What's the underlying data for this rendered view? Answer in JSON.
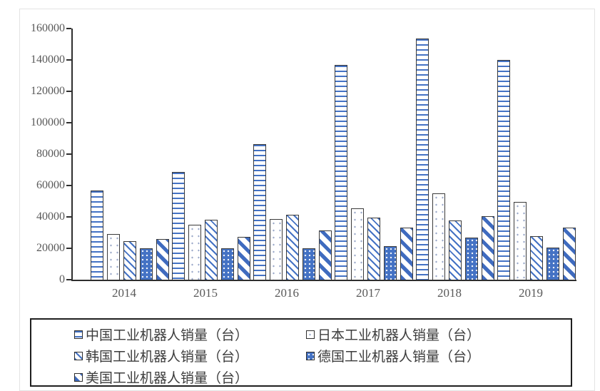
{
  "chart_data": {
    "type": "bar",
    "title": "",
    "xlabel": "",
    "ylabel": "",
    "categories": [
      "2014",
      "2015",
      "2016",
      "2017",
      "2018",
      "2019"
    ],
    "series": [
      {
        "name": "中国工业机器人销量（台）",
        "pattern": "china",
        "values": [
          57000,
          68500,
          86500,
          137000,
          153500,
          140000
        ]
      },
      {
        "name": "日本工业机器人销量（台）",
        "pattern": "japan",
        "values": [
          29000,
          34800,
          38500,
          45500,
          55000,
          49500
        ]
      },
      {
        "name": "韩国工业机器人销量（台）",
        "pattern": "korea",
        "values": [
          24500,
          38300,
          41300,
          39700,
          37800,
          27800
        ]
      },
      {
        "name": "德国工业机器人销量（台）",
        "pattern": "germany",
        "values": [
          19800,
          19800,
          19900,
          21300,
          26700,
          20500
        ]
      },
      {
        "name": "美国工业机器人销量（台）",
        "pattern": "usa",
        "values": [
          26000,
          27400,
          31400,
          33000,
          40400,
          33300
        ]
      }
    ],
    "ylim": [
      0,
      160000
    ],
    "ytick_step": 20000,
    "ytick_labels": [
      "0",
      "20000",
      "40000",
      "60000",
      "80000",
      "100000",
      "120000",
      "140000",
      "160000"
    ],
    "grid": false,
    "legend_position": "bottom",
    "legend_layout": [
      [
        0,
        0
      ],
      [
        0,
        1
      ],
      [
        1,
        0
      ],
      [
        1,
        1
      ],
      [
        2,
        0
      ]
    ]
  },
  "colors": {
    "bar_blue": "#4472c4",
    "bar_blue_dark": "#3f6bbf",
    "bar_outline": "#3a3a3a",
    "axis": "#2f2f2f",
    "tick_label": "#595959",
    "legend_text": "#3c3c3c",
    "legend_border": "#1f1f1f",
    "frame": "#e3e3e3"
  }
}
